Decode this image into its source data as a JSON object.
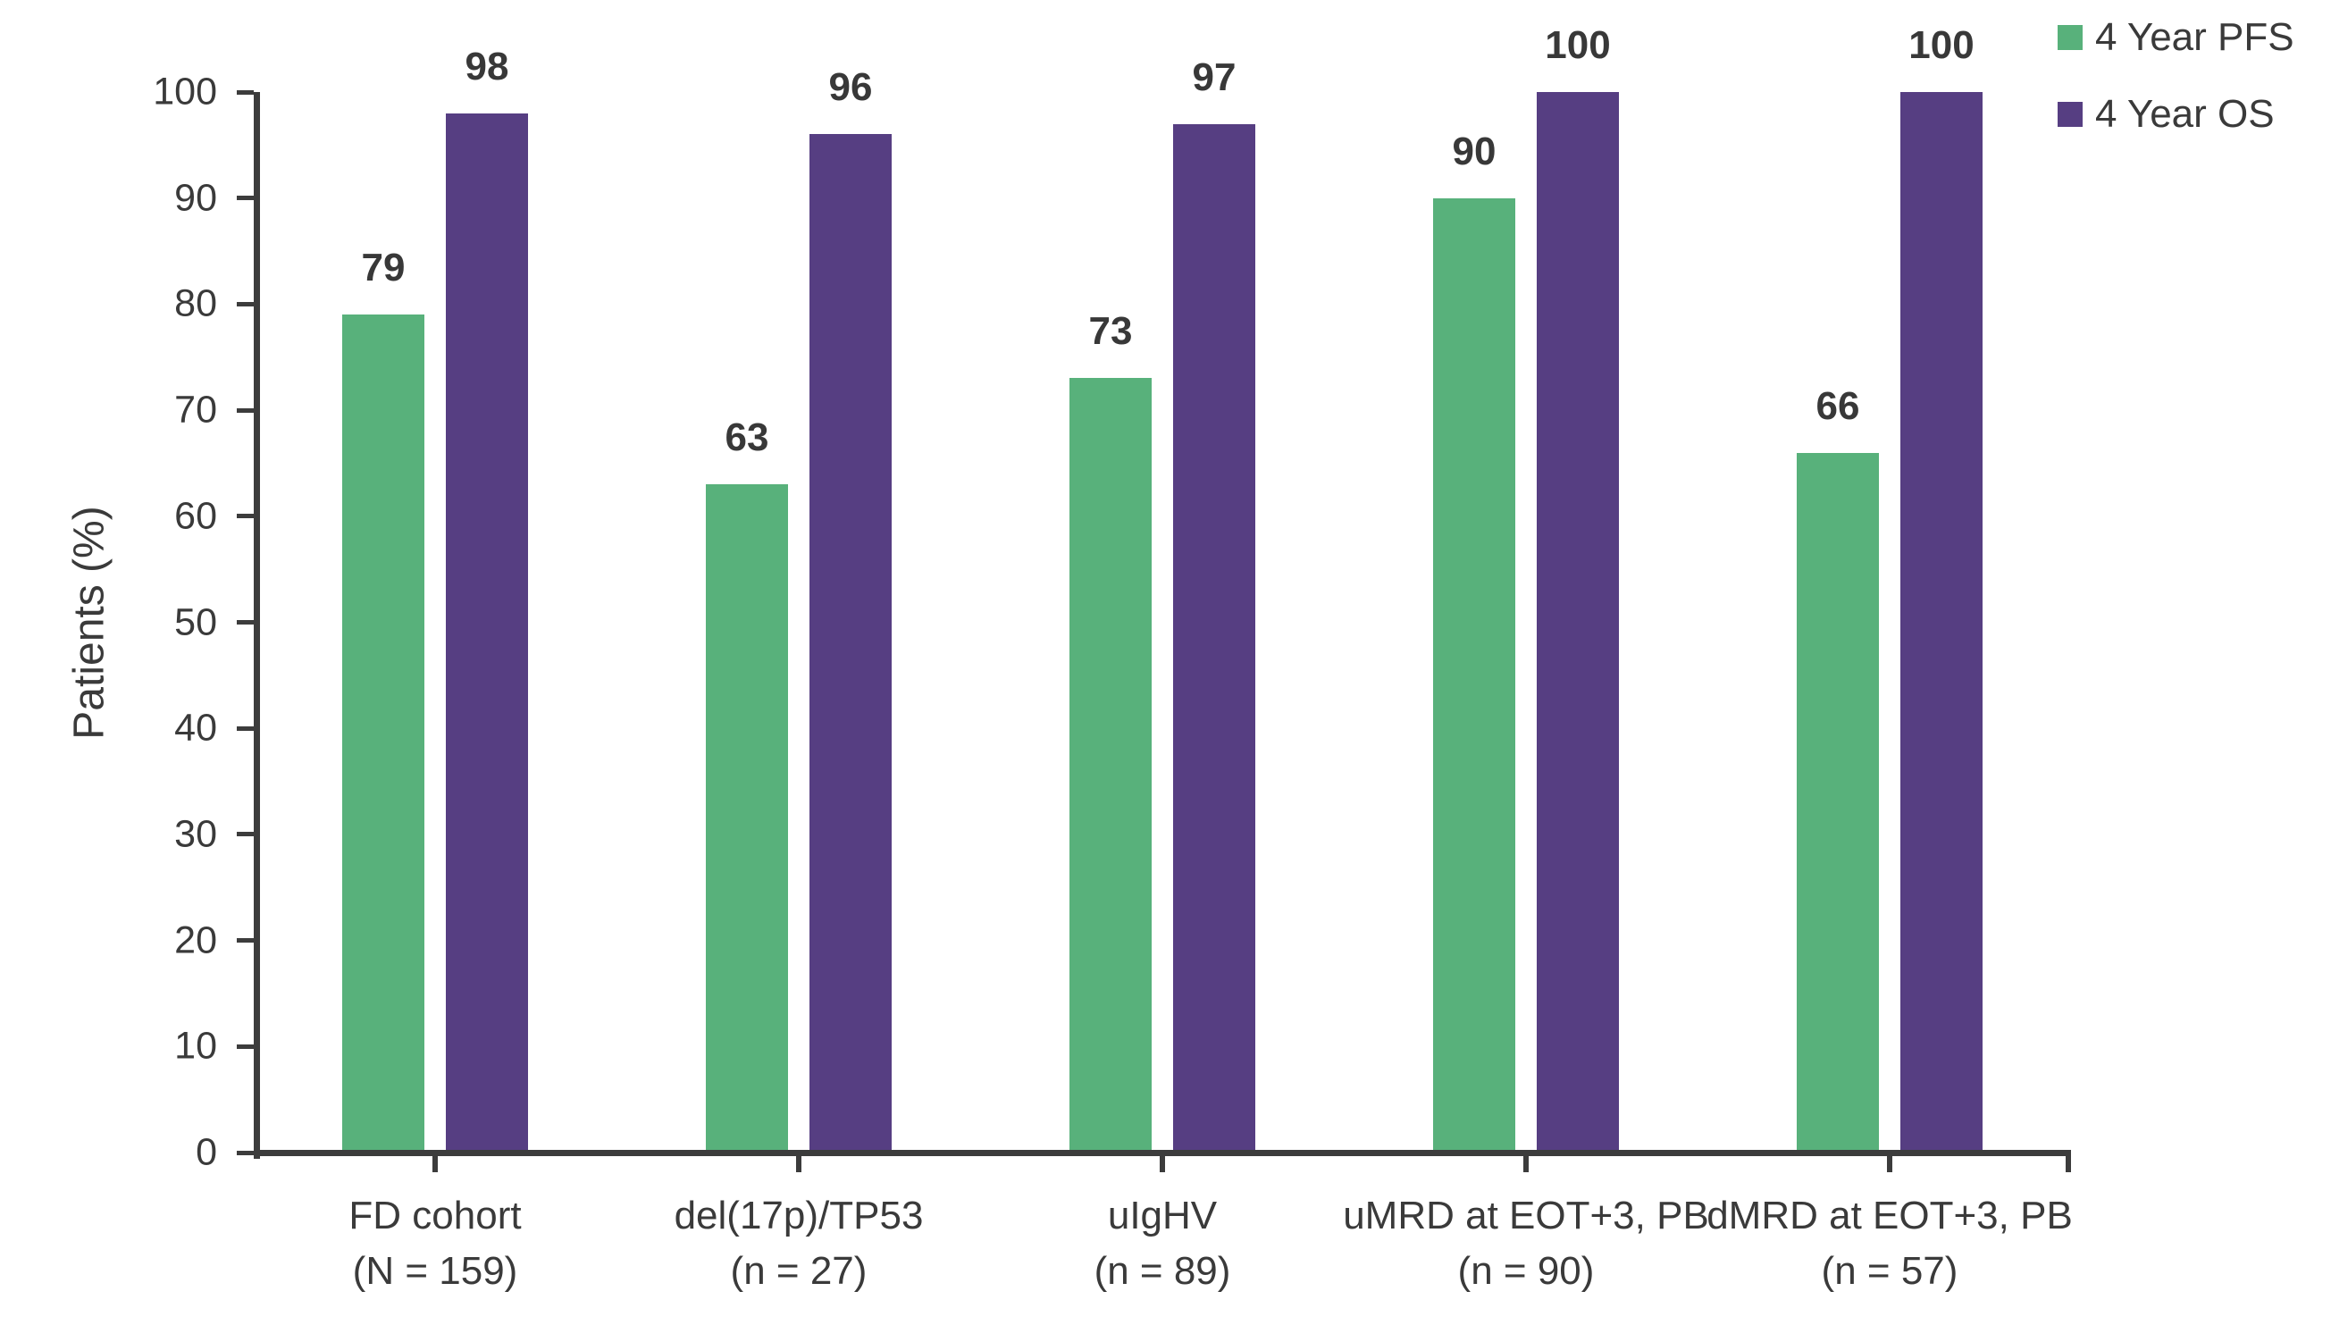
{
  "chart_data": {
    "type": "bar",
    "title": "",
    "xlabel": "",
    "ylabel": "Patients (%)",
    "ylim": [
      0,
      100
    ],
    "ytick_interval": 10,
    "grid": false,
    "legend_position": "top-right",
    "categories": [
      "FD cohort",
      "del(17p)/TP53",
      "uIgHV",
      "uMRD at EOT+3, PB",
      "dMRD at EOT+3, PB"
    ],
    "category_sublabels": [
      "(N = 159)",
      "(n = 27)",
      "(n = 89)",
      "(n = 90)",
      "(n = 57)"
    ],
    "series": [
      {
        "name": "4 Year PFS",
        "color": "#58B17B",
        "values": [
          79,
          63,
          73,
          90,
          66
        ]
      },
      {
        "name": "4 Year OS",
        "color": "#563E82",
        "values": [
          98,
          96,
          97,
          100,
          100
        ]
      }
    ]
  },
  "colors": {
    "axis": "#3C3C3C",
    "label_text": "#3A3A3A",
    "value_label_text": "#383838"
  }
}
